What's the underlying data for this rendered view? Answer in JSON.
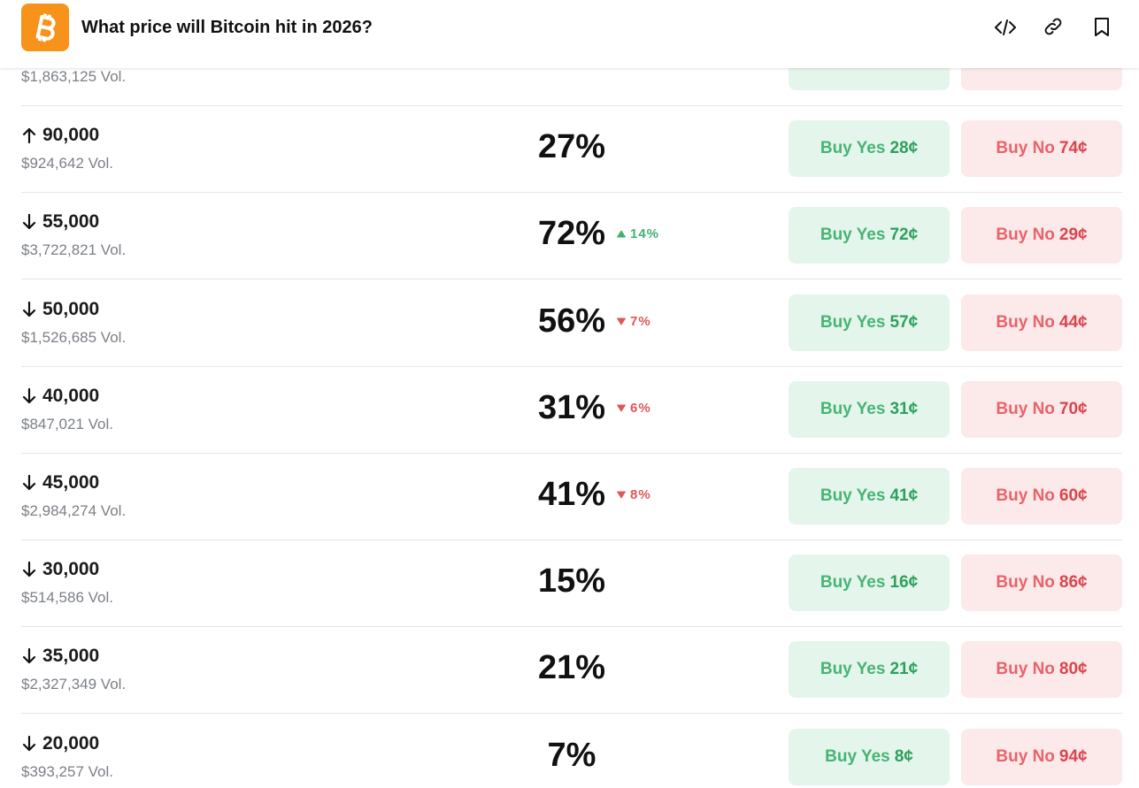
{
  "header": {
    "title": "What price will Bitcoin hit in 2026?"
  },
  "partial_row": {
    "volume": "$1,863,125 Vol."
  },
  "rows": [
    {
      "direction": "up",
      "price": "90,000",
      "volume": "$924,642 Vol.",
      "chance": "27%",
      "change": null,
      "yes": {
        "label": "Buy Yes",
        "price": "28¢"
      },
      "no": {
        "label": "Buy No",
        "price": "74¢"
      }
    },
    {
      "direction": "down",
      "price": "55,000",
      "volume": "$3,722,821 Vol.",
      "chance": "72%",
      "change": {
        "direction": "up",
        "text": "14%"
      },
      "yes": {
        "label": "Buy Yes",
        "price": "72¢"
      },
      "no": {
        "label": "Buy No",
        "price": "29¢"
      }
    },
    {
      "direction": "down",
      "price": "50,000",
      "volume": "$1,526,685 Vol.",
      "chance": "56%",
      "change": {
        "direction": "down",
        "text": "7%"
      },
      "yes": {
        "label": "Buy Yes",
        "price": "57¢"
      },
      "no": {
        "label": "Buy No",
        "price": "44¢"
      }
    },
    {
      "direction": "down",
      "price": "40,000",
      "volume": "$847,021 Vol.",
      "chance": "31%",
      "change": {
        "direction": "down",
        "text": "6%"
      },
      "yes": {
        "label": "Buy Yes",
        "price": "31¢"
      },
      "no": {
        "label": "Buy No",
        "price": "70¢"
      }
    },
    {
      "direction": "down",
      "price": "45,000",
      "volume": "$2,984,274 Vol.",
      "chance": "41%",
      "change": {
        "direction": "down",
        "text": "8%"
      },
      "yes": {
        "label": "Buy Yes",
        "price": "41¢"
      },
      "no": {
        "label": "Buy No",
        "price": "60¢"
      }
    },
    {
      "direction": "down",
      "price": "30,000",
      "volume": "$514,586 Vol.",
      "chance": "15%",
      "change": null,
      "yes": {
        "label": "Buy Yes",
        "price": "16¢"
      },
      "no": {
        "label": "Buy No",
        "price": "86¢"
      }
    },
    {
      "direction": "down",
      "price": "35,000",
      "volume": "$2,327,349 Vol.",
      "chance": "21%",
      "change": null,
      "yes": {
        "label": "Buy Yes",
        "price": "21¢"
      },
      "no": {
        "label": "Buy No",
        "price": "80¢"
      }
    },
    {
      "direction": "down",
      "price": "20,000",
      "volume": "$393,257 Vol.",
      "chance": "7%",
      "change": null,
      "yes": {
        "label": "Buy Yes",
        "price": "8¢"
      },
      "no": {
        "label": "Buy No",
        "price": "94¢"
      }
    }
  ]
}
